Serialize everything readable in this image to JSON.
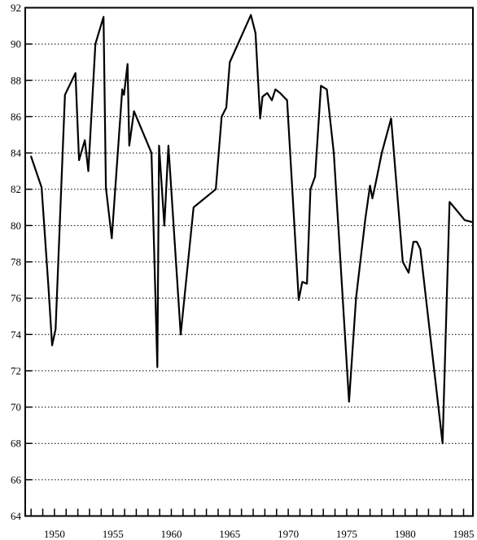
{
  "chart_data": {
    "type": "line",
    "title": "",
    "xlabel": "",
    "ylabel": "",
    "xlim": [
      1947.5,
      1985.8
    ],
    "ylim": [
      64,
      92
    ],
    "y_ticks": [
      64,
      66,
      68,
      70,
      72,
      74,
      76,
      78,
      80,
      82,
      84,
      86,
      88,
      90,
      92
    ],
    "x_tick_labels": [
      {
        "value": 1950,
        "label": "1950"
      },
      {
        "value": 1955,
        "label": "1955"
      },
      {
        "value": 1960,
        "label": "1960"
      },
      {
        "value": 1965,
        "label": "1965"
      },
      {
        "value": 1970,
        "label": "1970"
      },
      {
        "value": 1975,
        "label": "1975"
      },
      {
        "value": 1980,
        "label": "1980"
      },
      {
        "value": 1985,
        "label": "1985"
      }
    ],
    "x_minor_step": 1,
    "grid": "horizontal-dotted",
    "legend": "none",
    "line_color": "#000000",
    "series": [
      {
        "x": [
          1948.0,
          1948.9,
          1949.5,
          1949.8,
          1950.1,
          1950.9,
          1951.8,
          1952.1,
          1952.6,
          1952.9,
          1953.5,
          1954.2,
          1954.4,
          1954.9,
          1955.8,
          1955.95,
          1956.25,
          1956.4,
          1956.8,
          1958.3,
          1958.8,
          1958.95,
          1959.4,
          1959.75,
          1960.8,
          1961.9,
          1963.8,
          1964.3,
          1964.7,
          1965.0,
          1966.8,
          1967.2,
          1967.6,
          1967.8,
          1968.2,
          1968.6,
          1968.9,
          1969.3,
          1969.9,
          1970.9,
          1971.2,
          1971.6,
          1971.9,
          1972.3,
          1972.8,
          1973.3,
          1973.9,
          1975.2,
          1975.8,
          1976.6,
          1977.0,
          1977.2,
          1977.5,
          1978.0,
          1978.8,
          1979.8,
          1980.3,
          1980.7,
          1981.0,
          1981.3,
          1983.2,
          1983.8,
          1984.2,
          1985.1,
          1985.7
        ],
        "y": [
          83.8,
          82.1,
          76.5,
          73.4,
          74.3,
          87.2,
          88.4,
          83.6,
          84.7,
          83.0,
          90.0,
          91.5,
          82.1,
          79.3,
          87.5,
          87.2,
          88.9,
          84.4,
          86.3,
          84.0,
          72.2,
          84.4,
          80.0,
          84.4,
          74.0,
          81.0,
          82.0,
          86.0,
          86.5,
          89.0,
          91.6,
          90.6,
          85.9,
          87.1,
          87.3,
          86.9,
          87.5,
          87.3,
          86.9,
          75.9,
          76.9,
          76.8,
          82.0,
          82.7,
          87.7,
          87.5,
          84.0,
          70.3,
          76.0,
          80.4,
          82.2,
          81.5,
          82.4,
          84.0,
          85.9,
          78.0,
          77.4,
          79.1,
          79.1,
          78.7,
          68.0,
          81.3,
          81.0,
          80.3,
          80.2
        ]
      }
    ]
  }
}
